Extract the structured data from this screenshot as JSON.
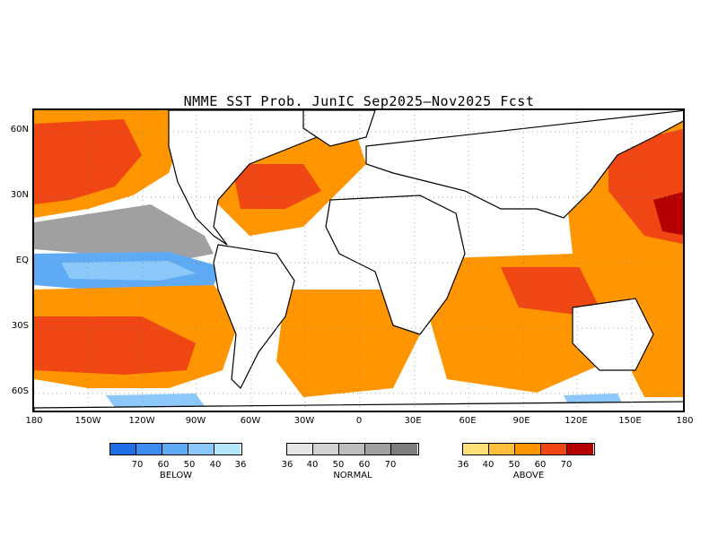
{
  "title": "NMME SST Prob. JunIC  Sep2025–Nov2025 Fcst",
  "map": {
    "lat_labels": [
      "60N",
      "30N",
      "EQ",
      "30S",
      "60S"
    ],
    "lon_labels": [
      "180",
      "150W",
      "120W",
      "90W",
      "60W",
      "30W",
      "0",
      "30E",
      "60E",
      "90E",
      "120E",
      "150E",
      "180"
    ]
  },
  "legends": [
    {
      "name": "BELOW",
      "colors": [
        "#1e6fe6",
        "#3c8cf0",
        "#5faaf5",
        "#8cc8fa",
        "#b4e6fa"
      ],
      "ticks": [
        "70",
        "60",
        "50",
        "40",
        "36"
      ]
    },
    {
      "name": "NORMAL",
      "colors": [
        "#e6e6e6",
        "#d2d2d2",
        "#bebebe",
        "#a0a0a0",
        "#7d7d7d"
      ],
      "ticks": [
        "36",
        "40",
        "50",
        "60",
        "70"
      ]
    },
    {
      "name": "ABOVE",
      "colors": [
        "#ffe178",
        "#ffbe3c",
        "#ff9600",
        "#f04614",
        "#b40000"
      ],
      "ticks": [
        "36",
        "40",
        "50",
        "60",
        "70"
      ]
    }
  ]
}
